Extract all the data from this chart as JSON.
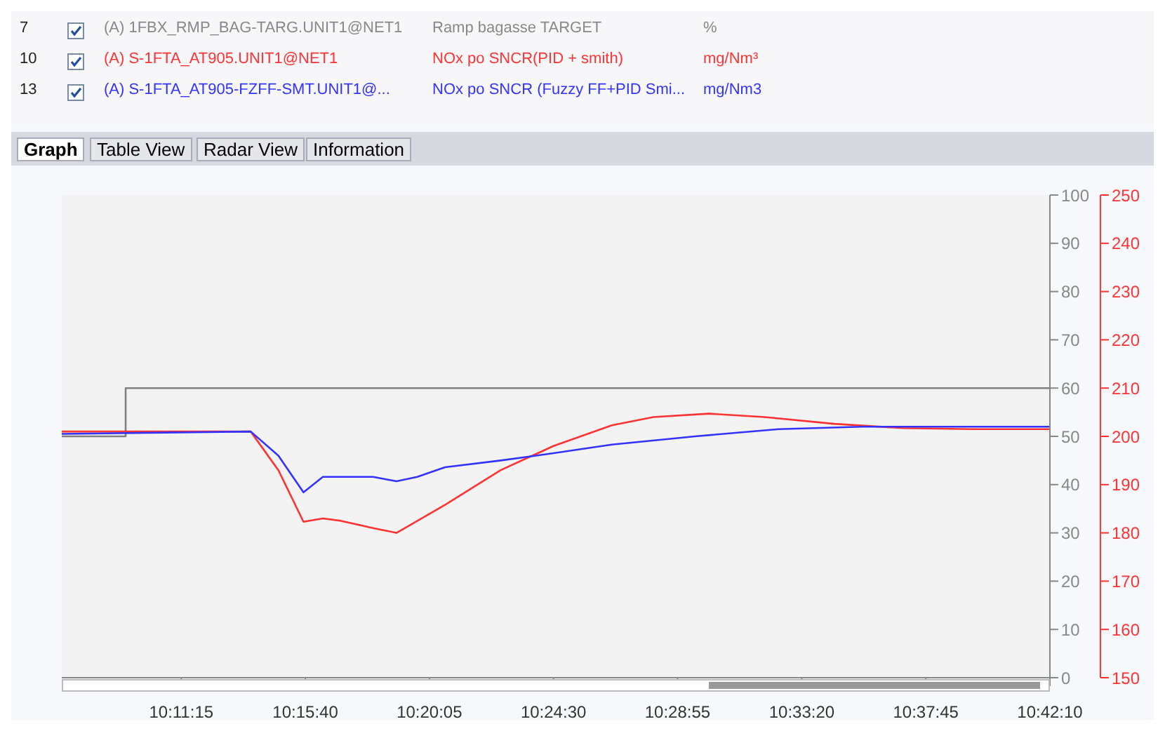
{
  "chart_data": {
    "type": "line",
    "legend": "top",
    "marker": "none",
    "line_style": "solid",
    "annotations": [
      "7",
      "(A) 1FBX_RMP_BAG-TARG.UNIT1@NET1",
      "%",
      "10",
      "(A) S-1FTA_AT905.UNIT1@NET1",
      "mg/Nm³",
      "13",
      "(A) S-1FTA_AT905-FZFF-SMT.UNIT1@...",
      "mg/Nm3",
      "Graph",
      "Table View",
      "Radar View",
      "Information"
    ],
    "xlim": [
      10.1166,
      10.7028
    ],
    "xticks": [
      {
        "value": 10.1875,
        "label": "10:11:15"
      },
      {
        "value": 10.2611,
        "label": "10:15:40"
      },
      {
        "value": 10.3347,
        "label": "10:20:05"
      },
      {
        "value": 10.4083,
        "label": "10:24:30"
      },
      {
        "value": 10.4819,
        "label": "10:28:55"
      },
      {
        "value": 10.5556,
        "label": "10:33:20"
      },
      {
        "value": 10.6292,
        "label": "10:37:45"
      },
      {
        "value": 10.7028,
        "label": "10:42:10"
      }
    ],
    "ylim": [
      0,
      100
    ],
    "yticks": [
      0,
      10,
      20,
      30,
      40,
      50,
      60,
      70,
      80,
      90,
      100
    ],
    "y2lim": [
      150,
      250
    ],
    "y2ticks": [
      150,
      160,
      170,
      180,
      190,
      200,
      210,
      220,
      230,
      240,
      250
    ],
    "series": [
      {
        "name": "Ramp bagasse TARGET",
        "type": "step",
        "color": "#808080",
        "x": [
          10.1166,
          10.1545,
          10.7028
        ],
        "values": [
          50,
          60,
          60
        ]
      },
      {
        "name": "NOx po SNCR(PID + smith)",
        "color": "#ff3333",
        "axis": "y2",
        "x": [
          10.1166,
          10.2287,
          10.2451,
          10.26,
          10.2715,
          10.2822,
          10.3012,
          10.3152,
          10.344,
          10.377,
          10.4083,
          10.4429,
          10.4676,
          10.5006,
          10.5335,
          10.5747,
          10.6159,
          10.6571,
          10.7028
        ],
        "values": [
          201,
          201,
          193,
          182.3,
          183,
          182.5,
          181,
          180,
          185.8,
          193,
          198,
          202.3,
          204,
          204.7,
          204,
          202.6,
          201.7,
          201.5,
          201.5
        ]
      },
      {
        "name": "NOx po SNCR (Fuzzy FF+PID Smi...",
        "color": "#3333ff",
        "axis": "y2",
        "x": [
          10.1166,
          10.2287,
          10.2451,
          10.26,
          10.2715,
          10.3012,
          10.3152,
          10.3275,
          10.344,
          10.377,
          10.4083,
          10.4429,
          10.4923,
          10.5418,
          10.5912,
          10.7028
        ],
        "values": [
          200.5,
          201,
          196,
          188.4,
          191.6,
          191.6,
          190.7,
          191.6,
          193.6,
          195,
          196.5,
          198.3,
          200,
          201.5,
          202,
          202
        ]
      }
    ]
  }
}
